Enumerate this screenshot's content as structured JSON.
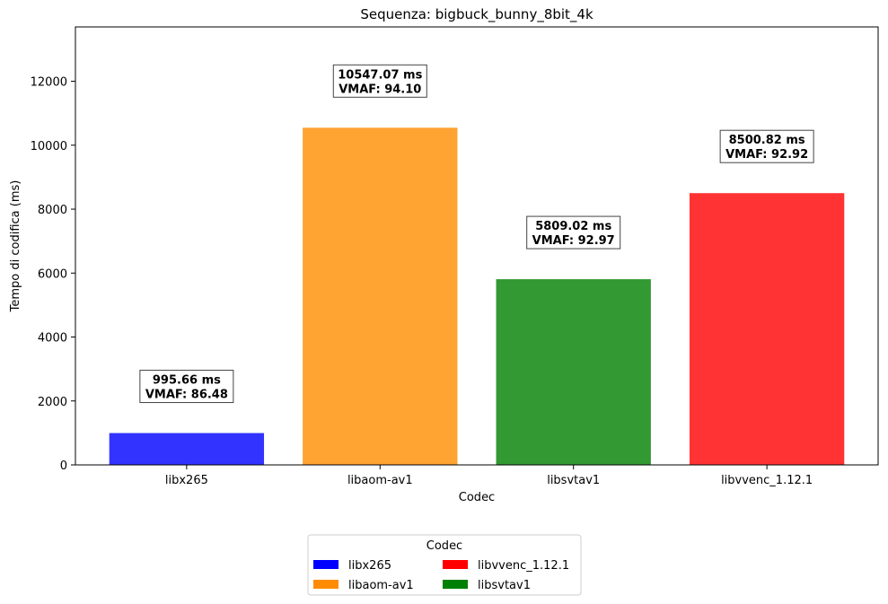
{
  "chart_data": {
    "type": "bar",
    "title": "Sequenza: bigbuck_bunny_8bit_4k",
    "xlabel": "Codec",
    "ylabel": "Tempo di codifica (ms)",
    "ylim": [
      0,
      13700
    ],
    "yticks": [
      0,
      2000,
      4000,
      6000,
      8000,
      10000,
      12000
    ],
    "grid": false,
    "categories": [
      "libx265",
      "libaom-av1",
      "libsvtav1",
      "libvvenc_1.12.1"
    ],
    "values": [
      995.66,
      10547.07,
      5809.02,
      8500.82
    ],
    "vmaf": [
      86.48,
      94.1,
      92.97,
      92.92
    ],
    "bar_colors": [
      "#3333ff",
      "#ffa333",
      "#339933",
      "#ff3333"
    ],
    "data_labels": [
      [
        "995.66 ms",
        "VMAF: 86.48"
      ],
      [
        "10547.07 ms",
        "VMAF: 94.10"
      ],
      [
        "5809.02 ms",
        "VMAF: 92.97"
      ],
      [
        "8500.82 ms",
        "VMAF: 92.92"
      ]
    ],
    "legend": {
      "title": "Codec",
      "placement": "bottom-center",
      "entries": [
        {
          "label": "libx265",
          "color": "#0000ff"
        },
        {
          "label": "libvvenc_1.12.1",
          "color": "#ff0000"
        },
        {
          "label": "libaom-av1",
          "color": "#ff8c00"
        },
        {
          "label": "libsvtav1",
          "color": "#008000"
        }
      ]
    }
  }
}
